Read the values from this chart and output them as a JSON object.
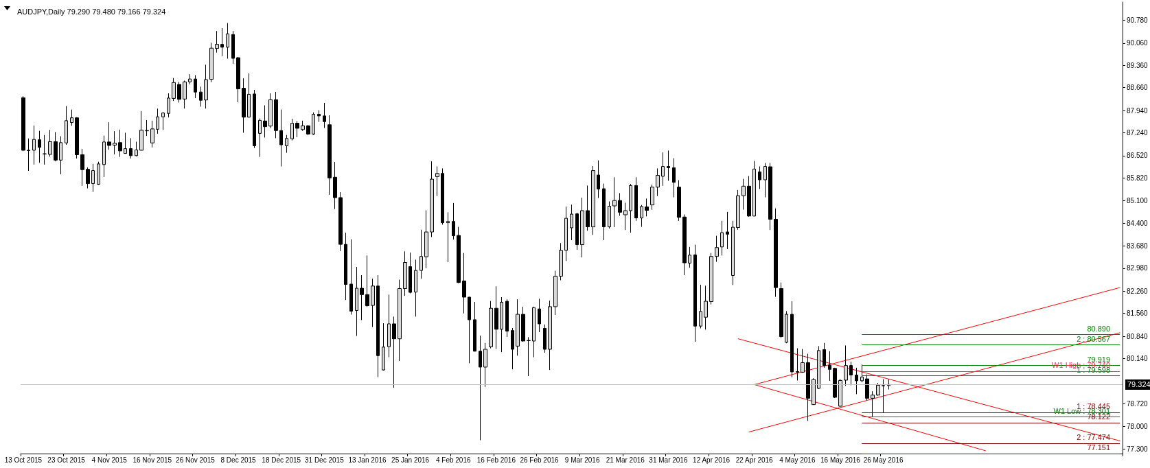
{
  "chart_data": {
    "type": "candlestick",
    "title": "AUDJPY,Daily 79.290 79.480 79.166 79.324",
    "categories": [
      "13 Oct 2015",
      null,
      null,
      null,
      null,
      null,
      null,
      null,
      "23 Oct 2015",
      null,
      null,
      null,
      null,
      null,
      null,
      null,
      "4 Nov 2015",
      null,
      null,
      null,
      null,
      null,
      null,
      null,
      "16 Nov 2015",
      null,
      null,
      null,
      null,
      null,
      null,
      null,
      "26 Nov 2015",
      null,
      null,
      null,
      null,
      null,
      null,
      null,
      "8 Dec 2015",
      null,
      null,
      null,
      null,
      null,
      null,
      null,
      "18 Dec 2015",
      null,
      null,
      null,
      null,
      null,
      null,
      null,
      "31 Dec 2015",
      null,
      null,
      null,
      null,
      null,
      null,
      null,
      "13 Jan 2016",
      null,
      null,
      null,
      null,
      null,
      null,
      null,
      "25 Jan 2016",
      null,
      null,
      null,
      null,
      null,
      null,
      null,
      "4 Feb 2016",
      null,
      null,
      null,
      null,
      null,
      null,
      null,
      "16 Feb 2016",
      null,
      null,
      null,
      null,
      null,
      null,
      null,
      "26 Feb 2016",
      null,
      null,
      null,
      null,
      null,
      null,
      null,
      "9 Mar 2016",
      null,
      null,
      null,
      null,
      null,
      null,
      null,
      "21 Mar 2016",
      null,
      null,
      null,
      null,
      null,
      null,
      null,
      "31 Mar 2016",
      null,
      null,
      null,
      null,
      null,
      null,
      null,
      "12 Apr 2016",
      null,
      null,
      null,
      null,
      null,
      null,
      null,
      "22 Apr 2016",
      null,
      null,
      null,
      null,
      null,
      null,
      null,
      "4 May 2016",
      null,
      null,
      null,
      null,
      null,
      null,
      null,
      "16 May 2016",
      null,
      null,
      null,
      null,
      null,
      null,
      null,
      "26 May 2016",
      null,
      null,
      null,
      null,
      null,
      null,
      null,
      null,
      null,
      null,
      null,
      null,
      null,
      null,
      null,
      null,
      null,
      null,
      null,
      null,
      null,
      null,
      null,
      null,
      null,
      null,
      null,
      null,
      null,
      null,
      null,
      null,
      null,
      null,
      null,
      null,
      null,
      null,
      null,
      null,
      null,
      null,
      null,
      null
    ],
    "ohlc": [
      [
        88.34,
        88.39,
        86.66,
        86.69
      ],
      [
        86.69,
        87.06,
        86.04,
        86.68
      ],
      [
        86.69,
        87.47,
        86.24,
        87.03
      ],
      [
        87.02,
        87.3,
        86.3,
        86.78
      ],
      [
        86.57,
        87.17,
        86.24,
        86.58
      ],
      [
        86.56,
        87.33,
        86.49,
        86.96
      ],
      [
        86.96,
        87.26,
        86.34,
        86.38
      ],
      [
        86.38,
        87.13,
        85.93,
        86.93
      ],
      [
        86.92,
        88.08,
        86.86,
        87.62
      ],
      [
        87.56,
        87.97,
        87.46,
        87.71
      ],
      [
        87.71,
        87.73,
        86.43,
        86.55
      ],
      [
        86.55,
        86.73,
        85.57,
        86.08
      ],
      [
        86.09,
        86.15,
        85.49,
        85.64
      ],
      [
        85.64,
        86.26,
        85.38,
        86.05
      ],
      [
        85.62,
        86.33,
        85.6,
        86.26
      ],
      [
        86.24,
        87.15,
        85.85,
        86.95
      ],
      [
        86.95,
        87.57,
        86.71,
        86.84
      ],
      [
        86.85,
        87.29,
        86.56,
        86.91
      ],
      [
        86.93,
        87.34,
        86.48,
        86.67
      ],
      [
        86.59,
        87.24,
        86.58,
        86.74
      ],
      [
        86.74,
        87.07,
        86.43,
        86.52
      ],
      [
        86.52,
        86.96,
        86.5,
        86.7
      ],
      [
        86.69,
        87.92,
        86.68,
        87.32
      ],
      [
        87.3,
        87.64,
        87.14,
        87.31
      ],
      [
        86.92,
        87.62,
        86.78,
        87.36
      ],
      [
        87.35,
        88.0,
        87.21,
        87.74
      ],
      [
        87.74,
        87.89,
        87.33,
        87.86
      ],
      [
        87.85,
        88.48,
        87.72,
        88.33
      ],
      [
        88.32,
        88.96,
        88.24,
        88.82
      ],
      [
        88.76,
        88.84,
        88.19,
        88.29
      ],
      [
        88.3,
        88.88,
        88.0,
        88.84
      ],
      [
        88.84,
        89.08,
        88.76,
        88.93
      ],
      [
        88.93,
        89.05,
        88.33,
        88.52
      ],
      [
        88.52,
        88.69,
        88.06,
        88.26
      ],
      [
        88.27,
        89.38,
        88.0,
        88.91
      ],
      [
        88.92,
        90.07,
        88.83,
        89.9
      ],
      [
        89.89,
        90.44,
        89.76,
        90.02
      ],
      [
        90.02,
        90.53,
        89.65,
        89.93
      ],
      [
        89.93,
        90.69,
        89.57,
        90.35
      ],
      [
        90.33,
        90.44,
        89.41,
        89.58
      ],
      [
        89.6,
        89.62,
        88.2,
        88.62
      ],
      [
        88.64,
        88.95,
        87.24,
        87.73
      ],
      [
        87.73,
        89.11,
        87.72,
        88.45
      ],
      [
        88.46,
        88.59,
        86.76,
        86.83
      ],
      [
        87.22,
        87.69,
        86.48,
        87.63
      ],
      [
        87.61,
        88.1,
        87.09,
        87.43
      ],
      [
        87.45,
        88.48,
        87.39,
        88.28
      ],
      [
        88.28,
        88.52,
        87.07,
        87.31
      ],
      [
        87.31,
        87.97,
        86.18,
        86.86
      ],
      [
        86.83,
        87.17,
        86.61,
        87.06
      ],
      [
        87.05,
        87.68,
        87.0,
        87.54
      ],
      [
        87.54,
        87.61,
        87.1,
        87.38
      ],
      [
        87.34,
        87.62,
        87.3,
        87.46
      ],
      [
        87.46,
        87.48,
        87.17,
        87.2
      ],
      [
        87.2,
        87.88,
        87.17,
        87.82
      ],
      [
        87.82,
        87.95,
        87.58,
        87.77
      ],
      [
        87.77,
        88.18,
        87.39,
        87.59
      ],
      [
        87.49,
        87.79,
        85.29,
        85.82
      ],
      [
        85.84,
        86.32,
        84.84,
        85.2
      ],
      [
        85.2,
        85.37,
        83.52,
        83.73
      ],
      [
        83.73,
        84.1,
        81.98,
        82.47
      ],
      [
        82.48,
        83.89,
        81.52,
        81.63
      ],
      [
        81.65,
        83.02,
        80.85,
        82.35
      ],
      [
        82.35,
        82.76,
        81.35,
        82.15
      ],
      [
        82.15,
        83.38,
        81.76,
        81.8
      ],
      [
        81.81,
        82.65,
        81.13,
        82.42
      ],
      [
        82.42,
        82.76,
        79.56,
        80.23
      ],
      [
        79.78,
        81.25,
        79.76,
        80.5
      ],
      [
        80.51,
        82.15,
        80.18,
        81.23
      ],
      [
        81.23,
        81.46,
        79.22,
        80.76
      ],
      [
        80.76,
        82.62,
        80.06,
        82.34
      ],
      [
        82.34,
        83.51,
        82.11,
        83.16
      ],
      [
        83.03,
        83.47,
        82.19,
        82.22
      ],
      [
        82.23,
        83.25,
        81.46,
        82.91
      ],
      [
        82.91,
        84.19,
        82.65,
        83.35
      ],
      [
        83.34,
        84.8,
        82.98,
        84.12
      ],
      [
        84.12,
        86.34,
        83.96,
        85.78
      ],
      [
        85.86,
        86.18,
        85.25,
        85.96
      ],
      [
        85.96,
        86.12,
        84.35,
        84.41
      ],
      [
        84.41,
        84.74,
        83.17,
        84.45
      ],
      [
        84.45,
        85.03,
        83.88,
        84.0
      ],
      [
        84.01,
        84.28,
        82.51,
        82.53
      ],
      [
        82.58,
        83.46,
        81.56,
        82.07
      ],
      [
        82.07,
        82.08,
        79.99,
        81.36
      ],
      [
        81.36,
        81.92,
        80.36,
        80.37
      ],
      [
        80.37,
        80.86,
        77.57,
        79.87
      ],
      [
        79.87,
        80.63,
        79.25,
        80.43
      ],
      [
        80.51,
        81.95,
        80.46,
        81.72
      ],
      [
        81.72,
        82.41,
        80.44,
        81.06
      ],
      [
        81.06,
        82.07,
        80.34,
        81.91
      ],
      [
        81.94,
        82.0,
        80.82,
        81.0
      ],
      [
        81.02,
        81.1,
        79.8,
        80.43
      ],
      [
        80.53,
        82.0,
        80.23,
        81.53
      ],
      [
        81.53,
        81.77,
        80.67,
        80.69
      ],
      [
        80.7,
        80.81,
        79.59,
        80.71
      ],
      [
        80.69,
        81.77,
        80.18,
        81.74
      ],
      [
        81.7,
        82.02,
        80.97,
        81.23
      ],
      [
        81.09,
        81.21,
        80.32,
        80.43
      ],
      [
        80.43,
        81.96,
        79.78,
        81.77
      ],
      [
        81.77,
        82.9,
        81.51,
        82.73
      ],
      [
        82.73,
        83.77,
        82.6,
        83.54
      ],
      [
        83.54,
        84.92,
        83.21,
        84.55
      ],
      [
        84.25,
        84.98,
        83.86,
        84.68
      ],
      [
        84.69,
        84.72,
        83.56,
        83.72
      ],
      [
        83.72,
        85.2,
        83.32,
        84.79
      ],
      [
        84.79,
        85.58,
        84.16,
        84.28
      ],
      [
        84.28,
        86.19,
        84.03,
        86.05
      ],
      [
        85.91,
        86.37,
        85.19,
        85.47
      ],
      [
        85.48,
        85.64,
        83.86,
        84.28
      ],
      [
        84.28,
        85.08,
        84.23,
        84.93
      ],
      [
        84.94,
        85.84,
        84.27,
        85.11
      ],
      [
        85.11,
        85.34,
        84.63,
        84.74
      ],
      [
        84.66,
        85.04,
        84.18,
        84.79
      ],
      [
        84.79,
        85.63,
        84.1,
        85.58
      ],
      [
        85.58,
        85.84,
        84.47,
        84.56
      ],
      [
        84.56,
        84.97,
        84.28,
        84.92
      ],
      [
        84.91,
        85.17,
        84.61,
        84.8
      ],
      [
        84.97,
        85.61,
        84.82,
        85.53
      ],
      [
        85.53,
        86.12,
        85.25,
        85.9
      ],
      [
        85.87,
        86.62,
        85.57,
        86.18
      ],
      [
        86.18,
        86.68,
        85.73,
        86.14
      ],
      [
        86.14,
        86.44,
        85.21,
        85.68
      ],
      [
        85.53,
        85.75,
        84.47,
        84.58
      ],
      [
        84.59,
        84.67,
        82.76,
        83.15
      ],
      [
        83.14,
        83.65,
        83.0,
        83.39
      ],
      [
        83.4,
        83.72,
        80.67,
        81.16
      ],
      [
        81.16,
        82.46,
        81.09,
        81.62
      ],
      [
        81.44,
        82.43,
        81.05,
        81.94
      ],
      [
        81.93,
        83.46,
        81.84,
        83.35
      ],
      [
        83.35,
        84.0,
        83.18,
        83.63
      ],
      [
        83.65,
        84.47,
        83.38,
        84.1
      ],
      [
        84.12,
        84.75,
        83.58,
        84.05
      ],
      [
        82.75,
        84.47,
        82.45,
        84.27
      ],
      [
        84.26,
        85.44,
        84.19,
        85.26
      ],
      [
        85.26,
        85.79,
        84.82,
        85.56
      ],
      [
        85.56,
        85.88,
        84.6,
        84.62
      ],
      [
        84.62,
        86.35,
        84.61,
        86.1
      ],
      [
        86.01,
        86.18,
        85.47,
        85.76
      ],
      [
        85.76,
        86.29,
        85.21,
        86.18
      ],
      [
        86.17,
        86.29,
        84.18,
        84.52
      ],
      [
        84.52,
        84.86,
        82.08,
        82.37
      ],
      [
        82.34,
        82.53,
        80.79,
        80.83
      ],
      [
        80.65,
        81.63,
        80.62,
        81.53
      ],
      [
        81.53,
        81.94,
        79.55,
        79.72
      ],
      [
        79.73,
        80.46,
        79.45,
        79.71
      ],
      [
        79.71,
        80.44,
        79.69,
        80.01
      ],
      [
        80.01,
        80.29,
        78.18,
        78.89
      ],
      [
        78.69,
        79.52,
        78.68,
        79.48
      ],
      [
        79.2,
        80.53,
        79.18,
        80.39
      ],
      [
        80.42,
        80.63,
        79.85,
        79.92
      ],
      [
        79.93,
        80.37,
        79.44,
        79.8
      ],
      [
        79.83,
        79.85,
        78.9,
        78.92
      ],
      [
        78.64,
        79.5,
        78.62,
        79.45
      ],
      [
        79.46,
        80.55,
        79.28,
        79.92
      ],
      [
        79.92,
        80.04,
        79.3,
        79.62
      ],
      [
        79.62,
        79.85,
        79.02,
        79.44
      ],
      [
        79.44,
        79.95,
        79.39,
        79.56
      ],
      [
        79.5,
        79.64,
        78.83,
        78.89
      ],
      [
        78.89,
        79.11,
        78.3,
        78.99
      ],
      [
        78.99,
        79.37,
        78.97,
        79.3
      ],
      [
        79.28,
        79.49,
        78.44,
        79.29
      ],
      [
        79.29,
        79.48,
        79.166,
        79.324
      ],
      null,
      null,
      null,
      null,
      null,
      null,
      null,
      null,
      null,
      null,
      null,
      null,
      null,
      null,
      null,
      null,
      null,
      null,
      null,
      null,
      null,
      null,
      null,
      null,
      null,
      null,
      null,
      null,
      null,
      null,
      null,
      null,
      null,
      null,
      null,
      null,
      null,
      null,
      null,
      null,
      null,
      null,
      null
    ],
    "series": [
      {
        "type": "line",
        "color": "#ff0000",
        "values": [
          null,
          null,
          null,
          null,
          null,
          null,
          null,
          null,
          null,
          null,
          null,
          null,
          null,
          null,
          null,
          null,
          null,
          null,
          null,
          null,
          null,
          null,
          null,
          null,
          null,
          null,
          null,
          null,
          null,
          null,
          null,
          null,
          null,
          null,
          null,
          null,
          null,
          null,
          null,
          null,
          null,
          null,
          null,
          null,
          null,
          null,
          null,
          null,
          null,
          null,
          null,
          null,
          null,
          null,
          null,
          null,
          null,
          null,
          null,
          null,
          null,
          null,
          null,
          null,
          null,
          null,
          null,
          null,
          null,
          null,
          null,
          null,
          null,
          null,
          null,
          null,
          null,
          null,
          null,
          null,
          null,
          null,
          null,
          null,
          null,
          null,
          null,
          null,
          null,
          null,
          null,
          null,
          null,
          null,
          null,
          null,
          null,
          null,
          null,
          null,
          null,
          null,
          null,
          null,
          null,
          null,
          null,
          null,
          null,
          null,
          null,
          null,
          null,
          null,
          null,
          null,
          null,
          null,
          null,
          null,
          null,
          null,
          null,
          null,
          null,
          null,
          null,
          null,
          null,
          null,
          null,
          null,
          null,
          80.76,
          null,
          null,
          null,
          null,
          null,
          null,
          null,
          null,
          null,
          null,
          null,
          null,
          null,
          null,
          null,
          null,
          null,
          null,
          null,
          null,
          null,
          null,
          null,
          null,
          null,
          null,
          null,
          null,
          null,
          null,
          null,
          null,
          null,
          null,
          null,
          null,
          null,
          null,
          null,
          null,
          null,
          null,
          null,
          null,
          null,
          null,
          null,
          null,
          null,
          null,
          null,
          null,
          null,
          null,
          null,
          null,
          null,
          null,
          null,
          null,
          null,
          null,
          null,
          null,
          null,
          null,
          null,
          null,
          null,
          null,
          77.55
        ]
      },
      {
        "type": "line",
        "color": "#ff0000",
        "values": [
          null,
          null,
          null,
          null,
          null,
          null,
          null,
          null,
          null,
          null,
          null,
          null,
          null,
          null,
          null,
          null,
          null,
          null,
          null,
          null,
          null,
          null,
          null,
          null,
          null,
          null,
          null,
          null,
          null,
          null,
          null,
          null,
          null,
          null,
          null,
          null,
          null,
          null,
          null,
          null,
          null,
          null,
          null,
          null,
          null,
          null,
          null,
          null,
          null,
          null,
          null,
          null,
          null,
          null,
          null,
          null,
          null,
          null,
          null,
          null,
          null,
          null,
          null,
          null,
          null,
          null,
          null,
          null,
          null,
          null,
          null,
          null,
          null,
          null,
          null,
          null,
          null,
          null,
          null,
          null,
          null,
          null,
          null,
          null,
          null,
          null,
          null,
          null,
          null,
          null,
          null,
          null,
          null,
          null,
          null,
          null,
          null,
          null,
          null,
          null,
          null,
          null,
          null,
          null,
          null,
          null,
          null,
          null,
          null,
          null,
          null,
          null,
          null,
          null,
          null,
          null,
          null,
          null,
          null,
          null,
          null,
          null,
          null,
          null,
          null,
          null,
          null,
          null,
          null,
          null,
          null,
          null,
          null,
          null,
          null,
          null,
          79.32,
          null,
          null,
          null,
          null,
          null,
          null,
          null,
          null,
          null,
          null,
          null,
          null,
          null,
          null,
          null,
          null,
          null,
          null,
          null,
          null,
          null,
          null,
          null,
          null,
          null,
          null,
          null,
          null,
          null,
          null,
          null,
          null,
          null,
          null,
          null,
          null,
          null,
          null,
          null,
          null,
          null,
          null,
          null,
          null,
          null,
          null,
          null,
          null,
          null,
          null,
          null,
          null,
          null,
          null,
          null,
          null,
          null,
          null,
          null,
          null,
          null,
          null,
          null,
          null,
          null,
          null,
          null,
          82.37
        ]
      },
      {
        "type": "line",
        "color": "#ff0000",
        "values": [
          null,
          null,
          null,
          null,
          null,
          null,
          null,
          null,
          null,
          null,
          null,
          null,
          null,
          null,
          null,
          null,
          null,
          null,
          null,
          null,
          null,
          null,
          null,
          null,
          null,
          null,
          null,
          null,
          null,
          null,
          null,
          null,
          null,
          null,
          null,
          null,
          null,
          null,
          null,
          null,
          null,
          null,
          null,
          null,
          null,
          null,
          null,
          null,
          null,
          null,
          null,
          null,
          null,
          null,
          null,
          null,
          null,
          null,
          null,
          null,
          null,
          null,
          null,
          null,
          null,
          null,
          null,
          null,
          null,
          null,
          null,
          null,
          null,
          null,
          null,
          null,
          null,
          null,
          null,
          null,
          null,
          null,
          null,
          null,
          null,
          null,
          null,
          null,
          null,
          null,
          null,
          null,
          null,
          null,
          null,
          null,
          null,
          null,
          null,
          null,
          null,
          null,
          null,
          null,
          null,
          null,
          null,
          null,
          null,
          null,
          null,
          null,
          null,
          null,
          null,
          null,
          null,
          null,
          null,
          null,
          null,
          null,
          null,
          null,
          null,
          null,
          null,
          null,
          null,
          null,
          null,
          null,
          null,
          null,
          null,
          null,
          79.32,
          null,
          null,
          null,
          null,
          null,
          null,
          null,
          null,
          null,
          null,
          null,
          null,
          null,
          null,
          null,
          null,
          null,
          null,
          null,
          null,
          null,
          null,
          null,
          null,
          null,
          null,
          null,
          null,
          null,
          null,
          null,
          null,
          null,
          null,
          null,
          null,
          null,
          null,
          null,
          null,
          null,
          null,
          77.24,
          null,
          null,
          null,
          null,
          null,
          null,
          null,
          null,
          null,
          null,
          null,
          null,
          null,
          null,
          null,
          null,
          null,
          null,
          null,
          null,
          null,
          null,
          null,
          null,
          null
        ]
      },
      {
        "type": "line",
        "color": "#ff0000",
        "values": [
          null,
          null,
          null,
          null,
          null,
          null,
          null,
          null,
          null,
          null,
          null,
          null,
          null,
          null,
          null,
          null,
          null,
          null,
          null,
          null,
          null,
          null,
          null,
          null,
          null,
          null,
          null,
          null,
          null,
          null,
          null,
          null,
          null,
          null,
          null,
          null,
          null,
          null,
          null,
          null,
          null,
          null,
          null,
          null,
          null,
          null,
          null,
          null,
          null,
          null,
          null,
          null,
          null,
          null,
          null,
          null,
          null,
          null,
          null,
          null,
          null,
          null,
          null,
          null,
          null,
          null,
          null,
          null,
          null,
          null,
          null,
          null,
          null,
          null,
          null,
          null,
          null,
          null,
          null,
          null,
          null,
          null,
          null,
          null,
          null,
          null,
          null,
          null,
          null,
          null,
          null,
          null,
          null,
          null,
          null,
          null,
          null,
          null,
          null,
          null,
          null,
          null,
          null,
          null,
          null,
          null,
          null,
          null,
          null,
          null,
          null,
          null,
          null,
          null,
          null,
          null,
          null,
          null,
          null,
          null,
          null,
          null,
          null,
          null,
          null,
          null,
          null,
          null,
          null,
          null,
          null,
          null,
          null,
          null,
          null,
          77.83,
          null,
          null,
          null,
          null,
          null,
          null,
          null,
          null,
          null,
          null,
          null,
          null,
          null,
          null,
          null,
          null,
          null,
          null,
          null,
          null,
          null,
          null,
          null,
          null,
          null,
          null,
          null,
          null,
          null,
          null,
          null,
          null,
          null,
          null,
          null,
          null,
          null,
          null,
          null,
          null,
          null,
          null,
          null,
          null,
          null,
          null,
          null,
          null,
          null,
          null,
          null,
          null,
          null,
          null,
          null,
          null,
          null,
          null,
          null,
          null,
          null,
          null,
          null,
          null,
          null,
          null,
          null,
          null,
          80.95
        ]
      }
    ],
    "ref_lines": [
      {
        "axis": "y",
        "value": 79.324,
        "label": "79.324",
        "color": "#c0c0c0"
      },
      {
        "axis": "y",
        "value": 80.89,
        "label": "80.890",
        "color": "#008000"
      },
      {
        "axis": "y",
        "value": 80.567,
        "label": "2 : 80.567",
        "color": "#008000"
      },
      {
        "axis": "y",
        "value": 79.919,
        "label": "79.919",
        "color": "#008000"
      },
      {
        "axis": "y",
        "value": 79.74,
        "label": "W1 High : 79.740",
        "color": "#e8305a"
      },
      {
        "axis": "y",
        "value": 79.598,
        "label": "1 : 79.598",
        "color": "#008000"
      },
      {
        "axis": "y",
        "value": 78.445,
        "label": "1 : 78.445",
        "color": "#800000"
      },
      {
        "axis": "y",
        "value": 78.301,
        "label": "W1 Low : 78.301",
        "color": "#008000"
      },
      {
        "axis": "y",
        "value": 78.122,
        "label": "78.122",
        "color": "#800000"
      },
      {
        "axis": "y",
        "value": 77.474,
        "label": "2 : 77.474",
        "color": "#800000"
      },
      {
        "axis": "y",
        "value": 77.151,
        "label": "77.151",
        "color": "#800000"
      }
    ],
    "ylim": [
      77.15,
      91.35
    ],
    "yticks": [
      {
        "value": 90.78,
        "label": "90.780"
      },
      {
        "value": 90.06,
        "label": "90.060"
      },
      {
        "value": 89.36,
        "label": "89.360"
      },
      {
        "value": 88.66,
        "label": "88.660"
      },
      {
        "value": 87.94,
        "label": "87.940"
      },
      {
        "value": 87.24,
        "label": "87.240"
      },
      {
        "value": 86.52,
        "label": "86.520"
      },
      {
        "value": 85.82,
        "label": "85.820"
      },
      {
        "value": 85.1,
        "label": "85.100"
      },
      {
        "value": 84.4,
        "label": "84.400"
      },
      {
        "value": 83.68,
        "label": "83.680"
      },
      {
        "value": 82.98,
        "label": "82.980"
      },
      {
        "value": 82.26,
        "label": "82.260"
      },
      {
        "value": 81.56,
        "label": "81.560"
      },
      {
        "value": 80.84,
        "label": "80.840"
      },
      {
        "value": 80.14,
        "label": "80.140"
      },
      {
        "value": 78.72,
        "label": "78.720"
      },
      {
        "value": 78.0,
        "label": "78.000"
      },
      {
        "value": 77.3,
        "label": "77.300"
      }
    ]
  }
}
